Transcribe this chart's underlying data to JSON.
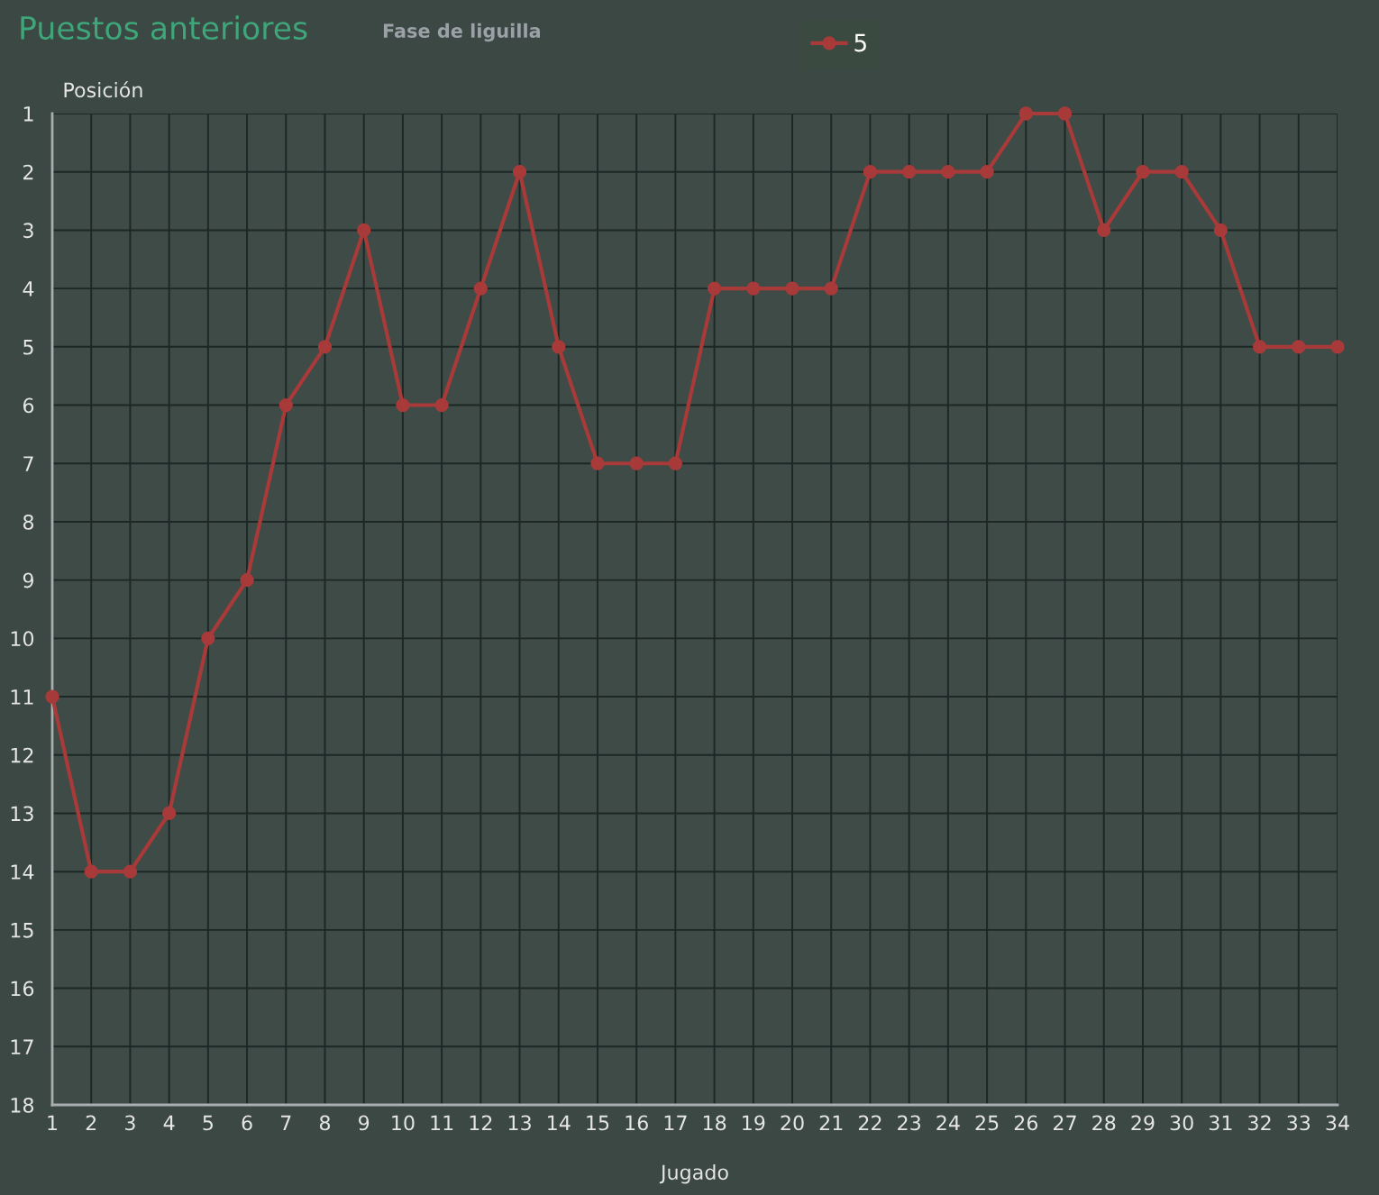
{
  "chart_data": {
    "type": "line",
    "title": "Puestos anteriores",
    "subtitle": "Fase de liguilla",
    "xlabel": "Jugado",
    "ylabel": "Posición",
    "x": [
      1,
      2,
      3,
      4,
      5,
      6,
      7,
      8,
      9,
      10,
      11,
      12,
      13,
      14,
      15,
      16,
      17,
      18,
      19,
      20,
      21,
      22,
      23,
      24,
      25,
      26,
      27,
      28,
      29,
      30,
      31,
      32,
      33,
      34
    ],
    "series": [
      {
        "name": "5",
        "color": "#a83a3a",
        "values": [
          11,
          14,
          14,
          13,
          10,
          9,
          6,
          5,
          3,
          6,
          6,
          4,
          2,
          5,
          7,
          7,
          7,
          4,
          4,
          4,
          4,
          2,
          2,
          2,
          2,
          1,
          1,
          3,
          2,
          2,
          3,
          5,
          5,
          5
        ]
      }
    ],
    "xlim": [
      1,
      34
    ],
    "ylim": [
      18,
      1
    ],
    "xticks": [
      1,
      2,
      3,
      4,
      5,
      6,
      7,
      8,
      9,
      10,
      11,
      12,
      13,
      14,
      15,
      16,
      17,
      18,
      19,
      20,
      21,
      22,
      23,
      24,
      25,
      26,
      27,
      28,
      29,
      30,
      31,
      32,
      33,
      34
    ],
    "yticks": [
      1,
      2,
      3,
      4,
      5,
      6,
      7,
      8,
      9,
      10,
      11,
      12,
      13,
      14,
      15,
      16,
      17,
      18
    ],
    "grid": true,
    "legend": "top right",
    "marker": "circle",
    "line_style": "solid"
  }
}
